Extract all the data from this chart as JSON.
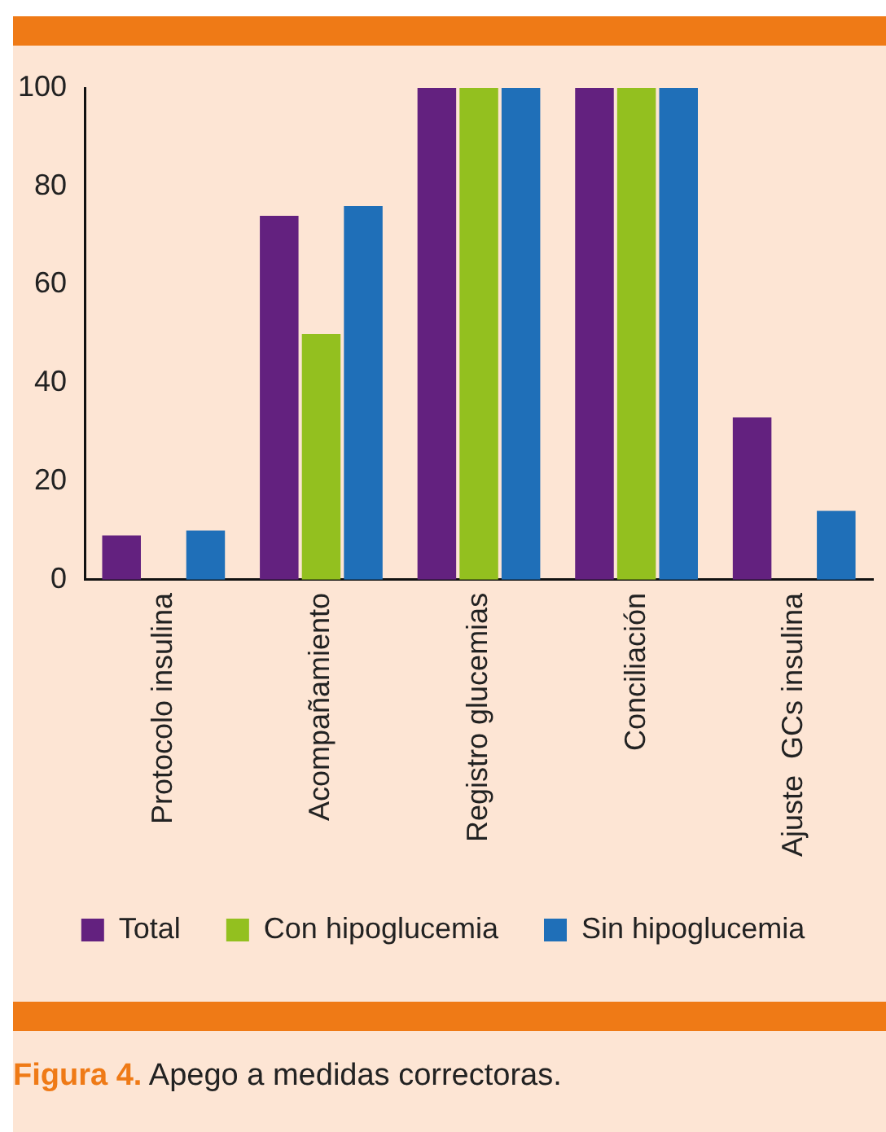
{
  "chart_data": {
    "type": "bar",
    "title": "Figura 4. Apego a medidas correctoras.",
    "categories": [
      "Protocolo insulina",
      "Acompañamiento",
      "Registro glucemias",
      "Conciliación",
      "Ajuste  GCs insulina"
    ],
    "series": [
      {
        "name": "Total",
        "color": "#63217f",
        "values": [
          9,
          74,
          100,
          100,
          33
        ]
      },
      {
        "name": "Con hipoglucemia",
        "color": "#93c01f",
        "values": [
          0,
          50,
          100,
          100,
          0
        ]
      },
      {
        "name": "Sin hipoglucemia",
        "color": "#1f6fb8",
        "values": [
          10,
          76,
          100,
          100,
          14
        ]
      }
    ],
    "ylim": [
      0,
      100
    ],
    "yticks": [
      0,
      20,
      40,
      60,
      80,
      100
    ],
    "grid": false,
    "legend": "bottom"
  }
}
